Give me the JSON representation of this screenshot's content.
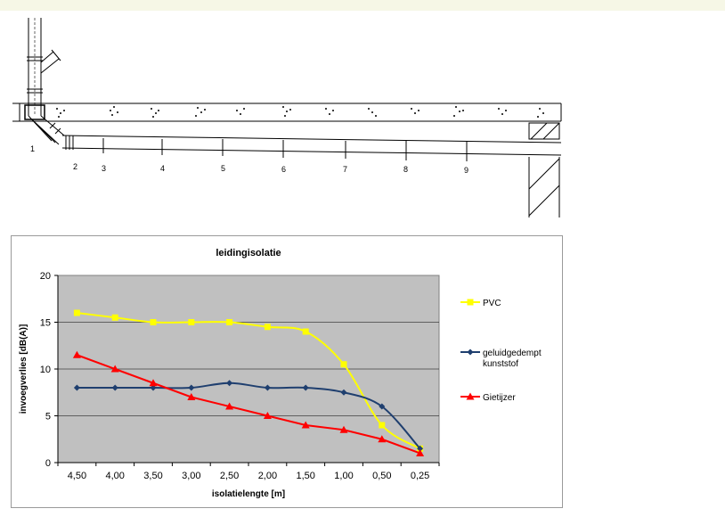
{
  "diagram": {
    "labels": [
      "1",
      "2",
      "3",
      "4",
      "5",
      "6",
      "7",
      "8",
      "9"
    ]
  },
  "chart_data": {
    "type": "line",
    "title": "leidingisolatie",
    "xlabel": "isolatielengte [m]",
    "ylabel": "invoegverlies [dB(A)]",
    "categories": [
      "4,50",
      "4,00",
      "3,50",
      "3,00",
      "2,50",
      "2,00",
      "1,50",
      "1,00",
      "0,50",
      "0,25"
    ],
    "ylim": [
      0,
      20
    ],
    "yticks": [
      "0",
      "5",
      "10",
      "15",
      "20"
    ],
    "grid": true,
    "legend_position": "right",
    "plot_background": "#c0c0c0",
    "series": [
      {
        "name": "PVC",
        "color": "#ffff00",
        "marker": "square",
        "values": [
          16,
          15.5,
          15,
          15,
          15,
          14.5,
          14,
          10.5,
          4,
          1.5
        ]
      },
      {
        "name": "geluidgedempt kunststof",
        "color": "#1f3f6f",
        "marker": "diamond",
        "values": [
          8,
          8,
          8,
          8,
          8.5,
          8,
          8,
          7.5,
          6,
          1.5
        ]
      },
      {
        "name": "Gietijzer",
        "color": "#ff0000",
        "marker": "triangle",
        "values": [
          11.5,
          10,
          8.5,
          7,
          6,
          5,
          4,
          3.5,
          2.5,
          1
        ]
      }
    ]
  }
}
